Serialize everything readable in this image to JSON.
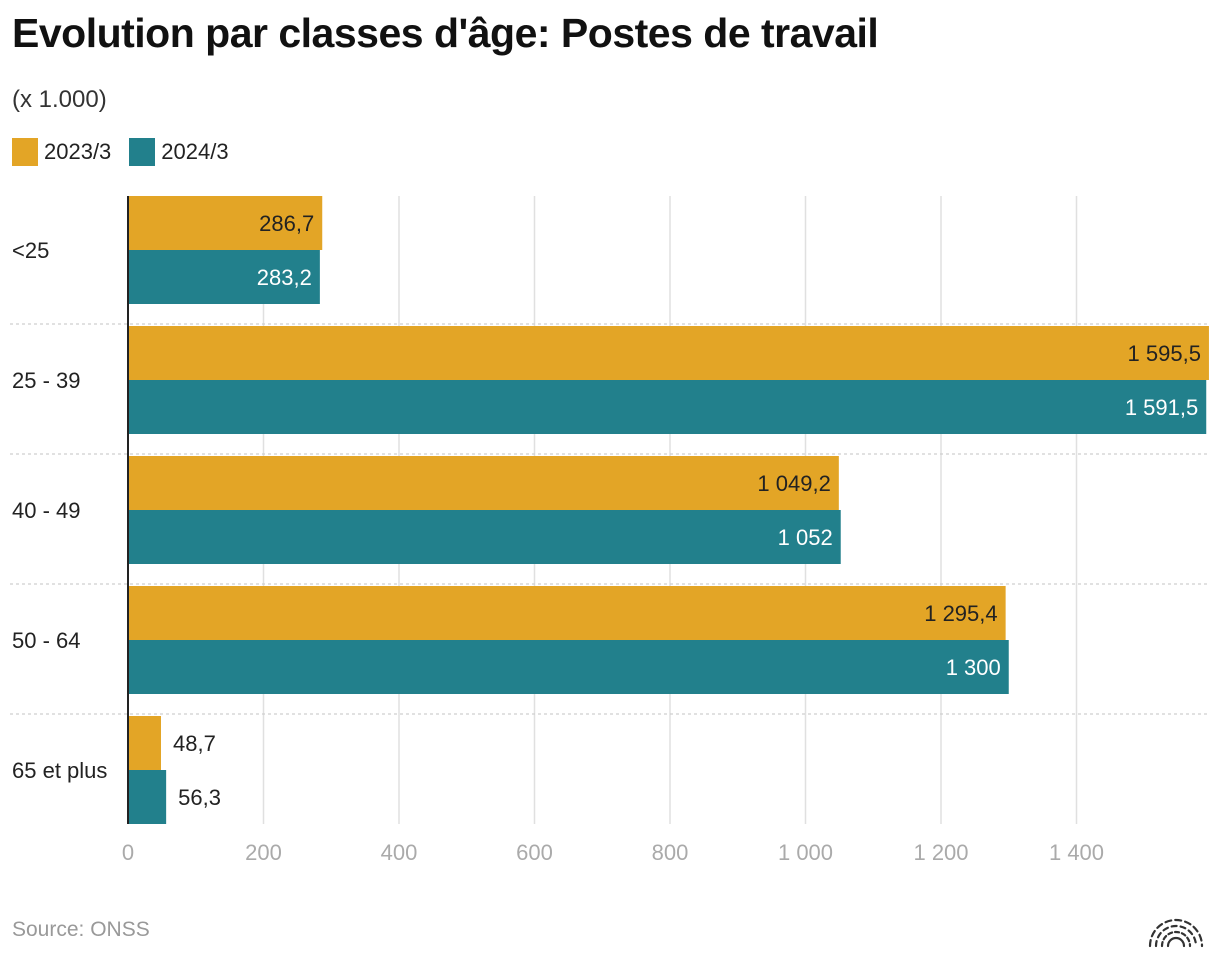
{
  "chart_data": {
    "type": "bar",
    "orientation": "horizontal",
    "title": "Evolution par classes d'âge: Postes de travail",
    "subtitle": "(x 1.000)",
    "categories": [
      "<25",
      "25 - 39",
      "40 - 49",
      "50 - 64",
      "65 et plus"
    ],
    "series": [
      {
        "name": "2023/3",
        "color": "#E3A526",
        "values": [
          286.7,
          1595.5,
          1049.2,
          1295.4,
          48.7
        ],
        "labels": [
          "286,7",
          "1 595,5",
          "1 049,2",
          "1 295,4",
          "48,7"
        ]
      },
      {
        "name": "2024/3",
        "color": "#22808C",
        "values": [
          283.2,
          1591.5,
          1052,
          1300,
          56.3
        ],
        "labels": [
          "283,2",
          "1 591,5",
          "1 052",
          "1 300",
          "56,3"
        ]
      }
    ],
    "xlim": [
      0,
      1600
    ],
    "xticks": [
      0,
      200,
      400,
      600,
      800,
      1000,
      1200,
      1400
    ],
    "xtick_labels": [
      "0",
      "200",
      "400",
      "600",
      "800",
      "1 000",
      "1 200",
      "1 400"
    ],
    "grid": true,
    "legend_position": "top-left"
  },
  "source": "Source: ONSS"
}
